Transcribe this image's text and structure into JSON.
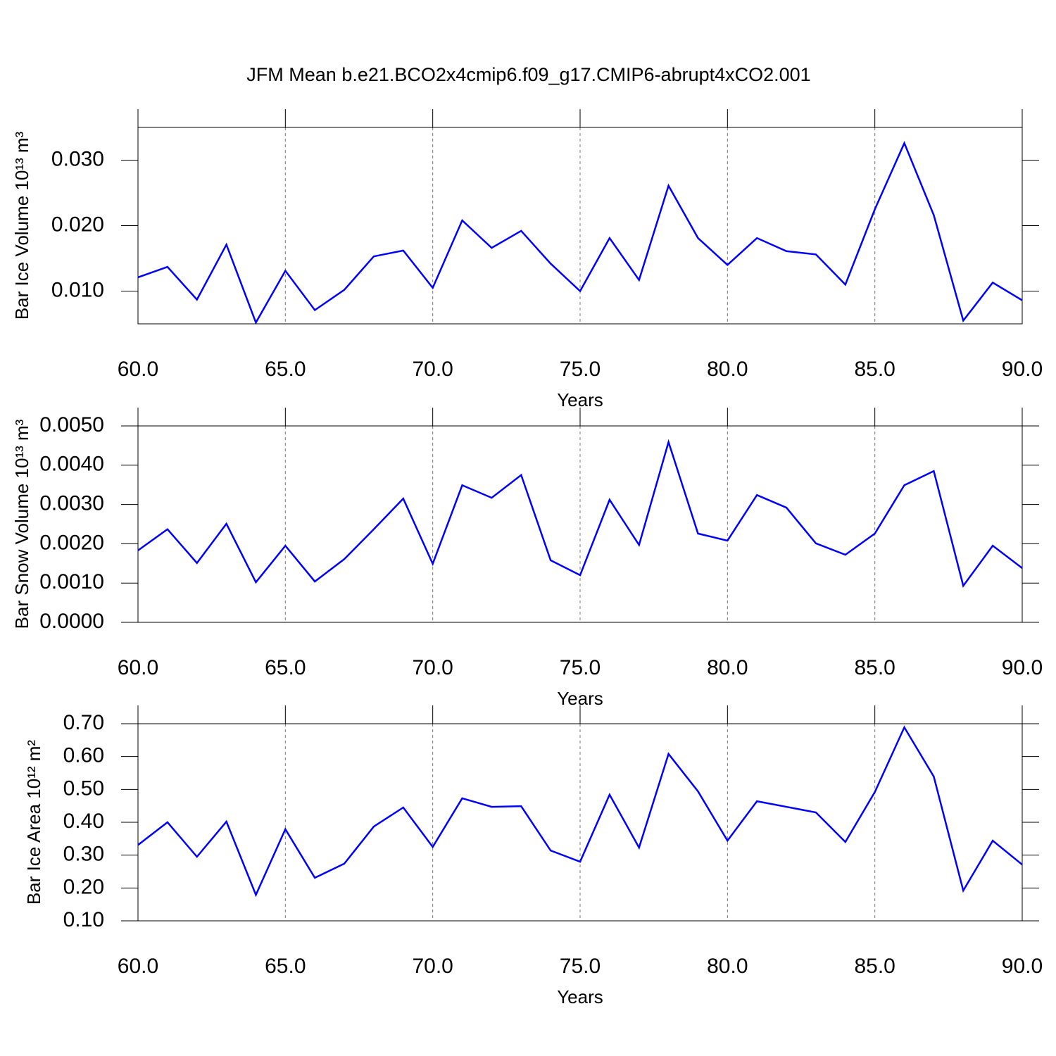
{
  "chart_data": [
    {
      "type": "line",
      "title": "JFM Mean b.e21.BCO2x4cmip6.f09_g17.CMIP6-abrupt4xCO2.001",
      "xlabel": "Years",
      "ylabel": "Bar Ice Volume 10¹³ m³",
      "color": "#0000ff",
      "xgrid": true,
      "x": [
        60,
        61,
        62,
        63,
        64,
        65,
        66,
        67,
        68,
        69,
        70,
        71,
        72,
        73,
        74,
        75,
        76,
        77,
        78,
        79,
        80,
        81,
        82,
        83,
        84,
        85,
        86,
        87,
        88,
        89,
        90
      ],
      "values": [
        0.0121,
        0.0137,
        0.0087,
        0.0171,
        0.0052,
        0.0131,
        0.0071,
        0.0102,
        0.0153,
        0.0162,
        0.0105,
        0.0208,
        0.0166,
        0.0192,
        0.0142,
        0.01,
        0.0181,
        0.0117,
        0.0261,
        0.0181,
        0.014,
        0.0181,
        0.0161,
        0.0156,
        0.011,
        0.0225,
        0.0326,
        0.0216,
        0.0055,
        0.0113,
        0.0086
      ],
      "xlim": [
        60,
        90
      ],
      "xticks": [
        {
          "value": 60,
          "label": "60.0"
        },
        {
          "value": 65,
          "label": "65.0"
        },
        {
          "value": 70,
          "label": "70.0"
        },
        {
          "value": 75,
          "label": "75.0"
        },
        {
          "value": 80,
          "label": "80.0"
        },
        {
          "value": 85,
          "label": "85.0"
        },
        {
          "value": 90,
          "label": "90.0"
        }
      ],
      "ylim": [
        0.005,
        0.035
      ],
      "yticks": [
        {
          "value": 0.01,
          "label": "0.010"
        },
        {
          "value": 0.02,
          "label": "0.020"
        },
        {
          "value": 0.03,
          "label": "0.030"
        }
      ]
    },
    {
      "type": "line",
      "xlabel": "Years",
      "ylabel": "Bar Snow Volume 10¹³ m³",
      "color": "#0000ff",
      "xgrid": true,
      "x": [
        60,
        61,
        62,
        63,
        64,
        65,
        66,
        67,
        68,
        69,
        70,
        71,
        72,
        73,
        74,
        75,
        76,
        77,
        78,
        79,
        80,
        81,
        82,
        83,
        84,
        85,
        86,
        87,
        88,
        89,
        90
      ],
      "values": [
        0.00183,
        0.00237,
        0.00151,
        0.00251,
        0.00102,
        0.00195,
        0.00104,
        0.00161,
        0.00237,
        0.00315,
        0.00149,
        0.00349,
        0.00317,
        0.00375,
        0.00158,
        0.0012,
        0.00312,
        0.00197,
        0.00459,
        0.00226,
        0.00208,
        0.00324,
        0.00292,
        0.00201,
        0.00172,
        0.00226,
        0.00349,
        0.00385,
        0.00093,
        0.00195,
        0.00138
      ],
      "xlim": [
        60,
        90
      ],
      "xticks": [
        {
          "value": 60,
          "label": "60.0"
        },
        {
          "value": 65,
          "label": "65.0"
        },
        {
          "value": 70,
          "label": "70.0"
        },
        {
          "value": 75,
          "label": "75.0"
        },
        {
          "value": 80,
          "label": "80.0"
        },
        {
          "value": 85,
          "label": "85.0"
        },
        {
          "value": 90,
          "label": "90.0"
        }
      ],
      "ylim": [
        0,
        0.005
      ],
      "yticks": [
        {
          "value": 0,
          "label": "0.0000"
        },
        {
          "value": 0.001,
          "label": "0.0010"
        },
        {
          "value": 0.002,
          "label": "0.0020"
        },
        {
          "value": 0.003,
          "label": "0.0030"
        },
        {
          "value": 0.004,
          "label": "0.0040"
        },
        {
          "value": 0.005,
          "label": "0.0050"
        }
      ]
    },
    {
      "type": "line",
      "xlabel": "Years",
      "ylabel": "Bar Ice Area 10¹² m²",
      "color": "#0000ff",
      "xgrid": true,
      "x": [
        60,
        61,
        62,
        63,
        64,
        65,
        66,
        67,
        68,
        69,
        70,
        71,
        72,
        73,
        74,
        75,
        76,
        77,
        78,
        79,
        80,
        81,
        82,
        83,
        84,
        85,
        86,
        87,
        88,
        89,
        90
      ],
      "values": [
        0.331,
        0.4,
        0.295,
        0.402,
        0.179,
        0.379,
        0.231,
        0.274,
        0.387,
        0.445,
        0.325,
        0.473,
        0.447,
        0.449,
        0.314,
        0.28,
        0.484,
        0.323,
        0.608,
        0.494,
        0.344,
        0.464,
        0.447,
        0.43,
        0.34,
        0.492,
        0.689,
        0.539,
        0.192,
        0.344,
        0.271
      ],
      "xlim": [
        60,
        90
      ],
      "xticks": [
        {
          "value": 60,
          "label": "60.0"
        },
        {
          "value": 65,
          "label": "65.0"
        },
        {
          "value": 70,
          "label": "70.0"
        },
        {
          "value": 75,
          "label": "75.0"
        },
        {
          "value": 80,
          "label": "80.0"
        },
        {
          "value": 85,
          "label": "85.0"
        },
        {
          "value": 90,
          "label": "90.0"
        }
      ],
      "ylim": [
        0.1,
        0.7
      ],
      "yticks": [
        {
          "value": 0.1,
          "label": "0.10"
        },
        {
          "value": 0.2,
          "label": "0.20"
        },
        {
          "value": 0.3,
          "label": "0.30"
        },
        {
          "value": 0.4,
          "label": "0.40"
        },
        {
          "value": 0.5,
          "label": "0.50"
        },
        {
          "value": 0.6,
          "label": "0.60"
        },
        {
          "value": 0.7,
          "label": "0.70"
        }
      ]
    }
  ]
}
